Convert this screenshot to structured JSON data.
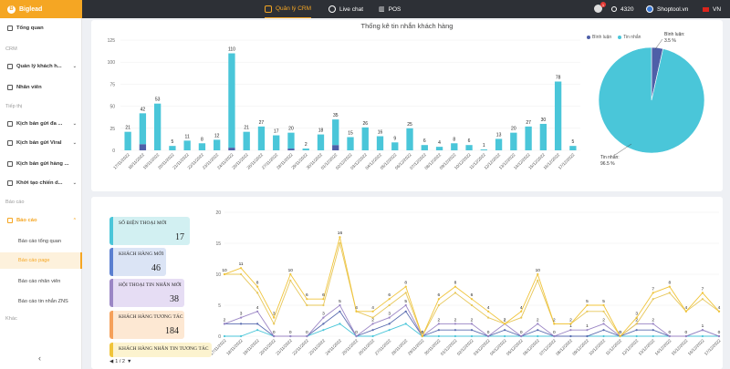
{
  "topbar": {
    "brand": "Biglead",
    "nav": [
      {
        "label": "Quản lý CRM",
        "icon": "crm-icon"
      },
      {
        "label": "Live chat",
        "icon": "chat-icon"
      },
      {
        "label": "POS",
        "icon": "barcode-icon"
      }
    ],
    "notification_count": "1",
    "coins": "4320",
    "shop": "Shoptool.vn",
    "language": "VN"
  },
  "sidebar": {
    "overview": "Tổng quan",
    "crm_section": "CRM",
    "customer_mgmt": "Quản lý khách h...",
    "staff": "Nhân viên",
    "marketing_section": "Tiếp thị",
    "scenario1": "Kịch bản gửi đa ...",
    "scenario2": "Kịch bản gửi Viral",
    "scenario3": "Kịch bản gửi hàng ...",
    "campaign": "Khởi tạo chiến d...",
    "report_section": "Báo cáo",
    "report_group": "Báo cáo",
    "sub_items": [
      "Báo cáo tổng quan",
      "Báo cáo page",
      "Báo cáo nhân viên",
      "Báo cáo tin nhắn ZNS"
    ],
    "other_section": "Khác",
    "collapse": "‹"
  },
  "bar_chart_title": "Thống kê tin nhắn khách hàng",
  "pie": {
    "label_comment": "Bình luận:",
    "pct_comment": "3.5 %",
    "label_message": "Tin nhắn:",
    "pct_message": "96.5 %"
  },
  "cards": [
    {
      "title": "Số điện thoại mới",
      "value": "17"
    },
    {
      "title": "Khách hàng mới",
      "value": "46"
    },
    {
      "title": "Hội thoại tin nhắn mới",
      "value": "38"
    },
    {
      "title": "Khách hàng tương tác",
      "value": "184"
    },
    {
      "title": "Khách hàng nhắn tin tương tác",
      "value": ""
    }
  ],
  "pager": "1 / 2",
  "colors": {
    "accent": "#f5a623",
    "tin_nhan": "#4ac6d9",
    "binh_luan": "#4e5fa8",
    "line_yellow": "#f0c43a"
  },
  "chart_data": [
    {
      "type": "bar",
      "title": "Thống kê tin nhắn khách hàng",
      "stacked": true,
      "legend": "top-right",
      "categories": [
        "17/11/2022",
        "18/11/2022",
        "19/11/2022",
        "20/11/2022",
        "21/11/2022",
        "22/11/2022",
        "23/11/2022",
        "24/11/2022",
        "25/11/2022",
        "26/11/2022",
        "27/11/2022",
        "28/11/2022",
        "29/11/2022",
        "30/11/2022",
        "01/12/2022",
        "02/12/2022",
        "03/12/2022",
        "04/12/2022",
        "05/12/2022",
        "06/12/2022",
        "07/12/2022",
        "08/12/2022",
        "09/12/2022",
        "10/12/2022",
        "11/12/2022",
        "12/12/2022",
        "13/12/2022",
        "14/12/2022",
        "15/12/2022",
        "16/12/2022",
        "17/12/2022"
      ],
      "ylim": [
        0,
        125
      ],
      "yticks": [
        0,
        25,
        50,
        75,
        100,
        125
      ],
      "totals": [
        21,
        42,
        53,
        5,
        11,
        8,
        12,
        110,
        21,
        27,
        17,
        20,
        2,
        18,
        35,
        15,
        26,
        16,
        9,
        25,
        6,
        4,
        8,
        6,
        1,
        13,
        20,
        27,
        30,
        78,
        5
      ],
      "series": [
        {
          "name": "Bình luận",
          "color": "#4e5fa8",
          "values": [
            0,
            7,
            0,
            0,
            0,
            0,
            0,
            3,
            0,
            0,
            0,
            2,
            0,
            0,
            6,
            0,
            0,
            0,
            0,
            0,
            0,
            0,
            0,
            0,
            0,
            0,
            0,
            0,
            0,
            0,
            0
          ]
        },
        {
          "name": "Tin nhắn",
          "color": "#4ac6d9",
          "values": [
            21,
            35,
            53,
            5,
            11,
            8,
            12,
            107,
            21,
            27,
            17,
            18,
            2,
            18,
            29,
            15,
            26,
            16,
            9,
            25,
            6,
            4,
            8,
            6,
            1,
            13,
            20,
            27,
            30,
            78,
            5
          ]
        }
      ]
    },
    {
      "type": "pie",
      "slices": [
        {
          "name": "Bình luận",
          "value": 3.5,
          "color": "#4e5fa8"
        },
        {
          "name": "Tin nhắn",
          "value": 96.5,
          "color": "#4ac6d9"
        }
      ]
    },
    {
      "type": "line",
      "ylim": [
        0,
        20
      ],
      "yticks": [
        0,
        5,
        10,
        15,
        20
      ],
      "categories": [
        "17/11/2022",
        "18/11/2022",
        "19/11/2022",
        "20/11/2022",
        "21/11/2022",
        "22/11/2022",
        "23/11/2022",
        "24/11/2022",
        "25/11/2022",
        "26/11/2022",
        "27/11/2022",
        "28/11/2022",
        "29/11/2022",
        "30/11/2022",
        "01/12/2022",
        "02/12/2022",
        "03/12/2022",
        "04/12/2022",
        "05/12/2022",
        "06/12/2022",
        "07/12/2022",
        "08/12/2022",
        "09/12/2022",
        "10/12/2022",
        "11/12/2022",
        "12/12/2022",
        "13/12/2022",
        "14/12/2022",
        "15/12/2022",
        "16/12/2022",
        "17/12/2022"
      ],
      "series": [
        {
          "color": "#f0c43a",
          "labels": true,
          "values": [
            10,
            11,
            8,
            3,
            10,
            6,
            6,
            16,
            4,
            4,
            6,
            8,
            0,
            6,
            8,
            6,
            4,
            2,
            4,
            10,
            2,
            2,
            5,
            5,
            0,
            3,
            7,
            8,
            4,
            7,
            4
          ]
        },
        {
          "color": "#e7c75a",
          "labels": false,
          "values": [
            10,
            10,
            7,
            2,
            9,
            5,
            5,
            15,
            4,
            3,
            5,
            7,
            0,
            5,
            7,
            5,
            3,
            2,
            3,
            9,
            2,
            2,
            4,
            4,
            0,
            2,
            6,
            7,
            4,
            6,
            4
          ]
        },
        {
          "color": "#9b86c5",
          "labels": true,
          "values": [
            2,
            3,
            4,
            0,
            0,
            0,
            3,
            5,
            0,
            2,
            3,
            5,
            0,
            2,
            2,
            2,
            0,
            2,
            0,
            2,
            0,
            1,
            1,
            2,
            0,
            2,
            2,
            0,
            0,
            1,
            0
          ]
        },
        {
          "color": "#5a6cb0",
          "labels": false,
          "values": [
            2,
            2,
            2,
            0,
            0,
            0,
            2,
            4,
            0,
            1,
            2,
            4,
            0,
            1,
            1,
            1,
            0,
            1,
            0,
            1,
            0,
            0,
            0,
            1,
            0,
            1,
            1,
            0,
            0,
            1,
            0
          ]
        },
        {
          "color": "#4ac6d9",
          "labels": false,
          "values": [
            0,
            0,
            1,
            0,
            0,
            0,
            1,
            2,
            0,
            0,
            1,
            2,
            0,
            0,
            0,
            0,
            0,
            0,
            0,
            0,
            0,
            0,
            0,
            0,
            0,
            0,
            0,
            0,
            0,
            0,
            0
          ]
        }
      ]
    }
  ]
}
